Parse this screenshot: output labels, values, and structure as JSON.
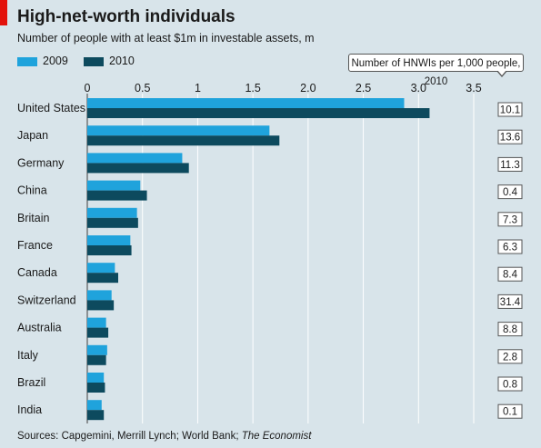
{
  "chart_data": {
    "type": "bar",
    "orientation": "horizontal",
    "title": "High-net-worth individuals",
    "subtitle": "Number of people with at least $1m in investable assets, m",
    "xlim": [
      0,
      3.5
    ],
    "xticks": [
      "0",
      "0.5",
      "1",
      "1.5",
      "2.0",
      "2.5",
      "3.0",
      "3.5"
    ],
    "xtick_values": [
      0,
      0.5,
      1,
      1.5,
      2.0,
      2.5,
      3.0,
      3.5
    ],
    "grid": true,
    "legend_position": "top-left",
    "categories": [
      "United States",
      "Japan",
      "Germany",
      "China",
      "Britain",
      "France",
      "Canada",
      "Switzerland",
      "Australia",
      "Italy",
      "Brazil",
      "India"
    ],
    "series": [
      {
        "name": "2009",
        "color": "#1fa3dc",
        "values": [
          2.87,
          1.65,
          0.86,
          0.48,
          0.45,
          0.39,
          0.25,
          0.22,
          0.17,
          0.18,
          0.15,
          0.13
        ]
      },
      {
        "name": "2010",
        "color": "#0d4a5e",
        "values": [
          3.1,
          1.74,
          0.92,
          0.54,
          0.46,
          0.4,
          0.28,
          0.24,
          0.19,
          0.17,
          0.16,
          0.15
        ]
      }
    ],
    "side_column": {
      "header": "Number of HNWIs per 1,000 people, 2010",
      "values": [
        "10.1",
        "13.6",
        "11.3",
        "0.4",
        "7.3",
        "6.3",
        "8.4",
        "31.4",
        "8.8",
        "2.8",
        "0.8",
        "0.1"
      ]
    },
    "source": "Sources: Capgemini, Merrill Lynch; World Bank;",
    "source_italic": "The Economist"
  }
}
